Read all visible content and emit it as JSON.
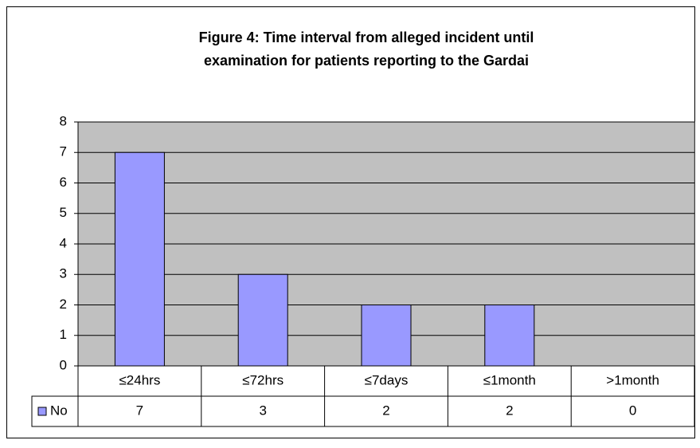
{
  "chart_data": {
    "type": "bar",
    "title": [
      "Figure 4: Time interval from alleged incident until",
      "examination for patients reporting to the Gardai"
    ],
    "categories": [
      "≤24hrs",
      "≤72hrs",
      "≤7days",
      "≤1month",
      ">1month"
    ],
    "series": [
      {
        "name": "No",
        "color": "#9999ff",
        "values": [
          7,
          3,
          2,
          2,
          0
        ]
      }
    ],
    "ylim": [
      0,
      8
    ],
    "yticks": [
      0,
      1,
      2,
      3,
      4,
      5,
      6,
      7,
      8
    ],
    "grid": true
  }
}
